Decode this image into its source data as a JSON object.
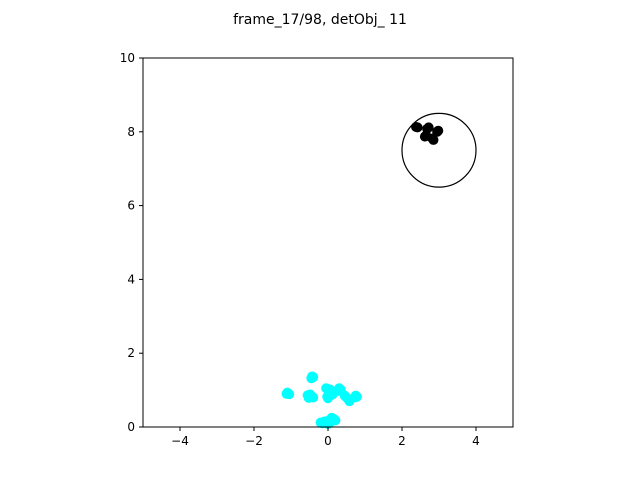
{
  "chart_data": {
    "type": "scatter",
    "title": "frame_17/98, detObj_ 11",
    "xlim": [
      -5,
      5
    ],
    "ylim": [
      0,
      10
    ],
    "xticks": [
      -4,
      -2,
      0,
      2,
      4
    ],
    "yticks": [
      0,
      2,
      4,
      6,
      8,
      10
    ],
    "xticklabels": [
      "−4",
      "−2",
      "0",
      "2",
      "4"
    ],
    "yticklabels": [
      "0",
      "2",
      "4",
      "6",
      "8",
      "10"
    ],
    "grid": false,
    "series": [
      {
        "color": "#00ffff",
        "points": [
          [
            -0.43,
            1.37
          ],
          [
            -0.45,
            1.32
          ],
          [
            -0.4,
            1.35
          ],
          [
            -1.1,
            0.93
          ],
          [
            -1.05,
            0.89
          ],
          [
            -1.12,
            0.9
          ],
          [
            -0.55,
            0.86
          ],
          [
            -0.5,
            0.82
          ],
          [
            -0.48,
            0.88
          ],
          [
            -0.4,
            0.8
          ],
          [
            -0.52,
            0.79
          ],
          [
            -0.05,
            1.05
          ],
          [
            0.0,
            1.0
          ],
          [
            0.05,
            1.02
          ],
          [
            -0.02,
            0.82
          ],
          [
            0.0,
            0.78
          ],
          [
            0.05,
            0.85
          ],
          [
            0.12,
            0.88
          ],
          [
            0.3,
            1.05
          ],
          [
            0.35,
            1.0
          ],
          [
            0.28,
            0.98
          ],
          [
            0.45,
            0.85
          ],
          [
            0.5,
            0.8
          ],
          [
            0.55,
            0.75
          ],
          [
            0.58,
            0.7
          ],
          [
            0.75,
            0.85
          ],
          [
            0.78,
            0.82
          ],
          [
            0.72,
            0.8
          ],
          [
            -0.2,
            0.12
          ],
          [
            -0.15,
            0.1
          ],
          [
            -0.1,
            0.15
          ],
          [
            -0.05,
            0.12
          ],
          [
            0.05,
            0.2
          ],
          [
            0.1,
            0.25
          ],
          [
            0.15,
            0.22
          ],
          [
            0.2,
            0.18
          ],
          [
            0.0,
            0.08
          ],
          [
            0.08,
            0.14
          ]
        ]
      },
      {
        "color": "#000000",
        "points": [
          [
            2.38,
            8.13
          ],
          [
            2.42,
            8.12
          ],
          [
            2.72,
            8.12
          ],
          [
            2.68,
            8.08
          ],
          [
            2.65,
            7.9
          ],
          [
            2.62,
            7.87
          ],
          [
            2.82,
            7.82
          ],
          [
            2.85,
            7.78
          ],
          [
            2.98,
            8.03
          ],
          [
            2.95,
            8.0
          ]
        ]
      }
    ],
    "circle": {
      "center": [
        3.0,
        7.5
      ],
      "radius": 1.0,
      "color": "#000000"
    }
  }
}
